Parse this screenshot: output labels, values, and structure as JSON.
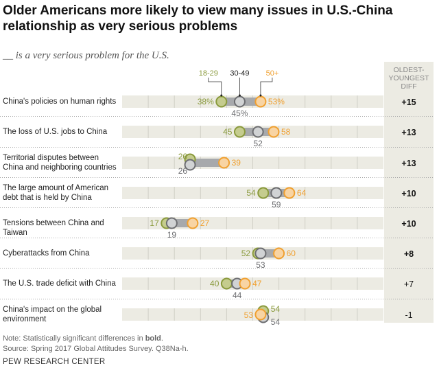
{
  "title": "Older Americans more likely to view many issues in U.S.-China relationship as very serious problems",
  "subtitle": "__ is a very serious problem for the U.S.",
  "diff_header": [
    "OLDEST-",
    "YOUNGEST",
    "DIFF"
  ],
  "note": {
    "prefix": "Note: Statistically significant differences in ",
    "bold": "bold",
    "suffix": "."
  },
  "source": "Source: Spring 2017 Global Attitudes Survey. Q38Na-h.",
  "brand": "PEW RESEARCH CENTER",
  "colors": {
    "young": "#8a9a3c",
    "young_fill": "#c5cc8e",
    "mid": "#6d6e71",
    "mid_fill": "#d1d3d4",
    "old": "#f0a030",
    "old_fill": "#f8d4a3",
    "band": "#ecebe3",
    "bar": "#a7a9ac"
  },
  "chart_data": {
    "type": "dot",
    "xlim": [
      0,
      100
    ],
    "legend": [
      "18-29",
      "30-49",
      "50+"
    ],
    "rows": [
      {
        "label": "China's policies on human rights",
        "y18_29": 38,
        "y30_49": 45,
        "y50": 53,
        "diff": "+15",
        "significant": true,
        "pct": true
      },
      {
        "label": "The loss of U.S. jobs to China",
        "y18_29": 45,
        "y30_49": 52,
        "y50": 58,
        "diff": "+13",
        "significant": true
      },
      {
        "label": "Territorial disputes between China and neighboring countries",
        "y18_29": 26,
        "y30_49": 26,
        "y50": 39,
        "diff": "+13",
        "significant": true
      },
      {
        "label": "The large amount of American debt that is held by China",
        "y18_29": 54,
        "y30_49": 59,
        "y50": 64,
        "diff": "+10",
        "significant": true
      },
      {
        "label": "Tensions between China and Taiwan",
        "y18_29": 17,
        "y30_49": 19,
        "y50": 27,
        "diff": "+10",
        "significant": true
      },
      {
        "label": "Cyberattacks from China",
        "y18_29": 52,
        "y30_49": 53,
        "y50": 60,
        "diff": "+8",
        "significant": true
      },
      {
        "label": "The U.S. trade deficit with China",
        "y18_29": 40,
        "y30_49": 44,
        "y50": 47,
        "diff": "+7",
        "significant": false
      },
      {
        "label": "China's impact on the global environment",
        "y18_29": 54,
        "y30_49": 54,
        "y50": 53,
        "diff": "-1",
        "significant": false
      }
    ]
  }
}
